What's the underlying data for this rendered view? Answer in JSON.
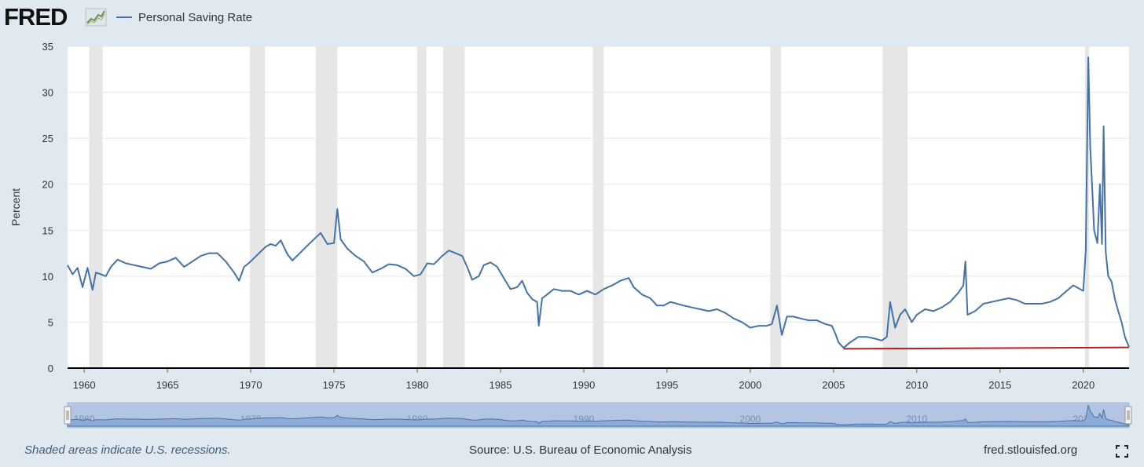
{
  "header": {
    "logo_text": "FRED",
    "logo_icon": "chart-line-icon",
    "legend_label": "Personal Saving Rate",
    "legend_color": "#4572a7"
  },
  "footer": {
    "recession_note": "Shaded areas indicate U.S. recessions.",
    "source": "Source: U.S. Bureau of Economic Analysis",
    "site": "fred.stlouisfed.org",
    "fullscreen_icon": "fullscreen-icon"
  },
  "colors": {
    "series": "#4572a7",
    "reference_line": "#b22222",
    "recession_band": "#e6e6e6",
    "background": "#e1e9f0",
    "navigator_fill": "#9fb5d9"
  },
  "chart_data": {
    "type": "line",
    "title": "",
    "ylabel": "Percent",
    "xlabel": "",
    "ylim": [
      0,
      35
    ],
    "yticks": [
      0,
      5,
      10,
      15,
      20,
      25,
      30,
      35
    ],
    "xlim": [
      1959.0,
      2022.75
    ],
    "xticks": [
      1960,
      1965,
      1970,
      1975,
      1980,
      1985,
      1990,
      1995,
      2000,
      2005,
      2010,
      2015,
      2020
    ],
    "navigator_labels": [
      1960,
      1970,
      1980,
      1990,
      2000,
      2010,
      2020
    ],
    "grid": true,
    "legend_position": "top-left",
    "recessions": [
      [
        1960.3,
        1961.1
      ],
      [
        1969.95,
        1970.85
      ],
      [
        1973.9,
        1975.2
      ],
      [
        1980.0,
        1980.55
      ],
      [
        1981.55,
        1982.85
      ],
      [
        1990.55,
        1991.2
      ],
      [
        2001.2,
        2001.85
      ],
      [
        2007.95,
        2009.45
      ],
      [
        2020.1,
        2020.35
      ]
    ],
    "reference_line": {
      "x_start": 2005.6,
      "x_end": 2022.75,
      "y_start": 2.1,
      "y_end": 2.25
    },
    "series": [
      {
        "name": "Personal Saving Rate",
        "points": [
          [
            1959.0,
            11.2
          ],
          [
            1959.3,
            10.2
          ],
          [
            1959.6,
            10.9
          ],
          [
            1959.9,
            8.8
          ],
          [
            1960.2,
            10.9
          ],
          [
            1960.5,
            8.5
          ],
          [
            1960.7,
            10.4
          ],
          [
            1961.0,
            10.2
          ],
          [
            1961.3,
            10.0
          ],
          [
            1961.6,
            11.0
          ],
          [
            1962.0,
            11.8
          ],
          [
            1962.5,
            11.4
          ],
          [
            1963.0,
            11.2
          ],
          [
            1963.5,
            11.0
          ],
          [
            1964.0,
            10.8
          ],
          [
            1964.5,
            11.4
          ],
          [
            1965.0,
            11.6
          ],
          [
            1965.5,
            12.0
          ],
          [
            1966.0,
            11.0
          ],
          [
            1966.5,
            11.6
          ],
          [
            1967.0,
            12.2
          ],
          [
            1967.5,
            12.5
          ],
          [
            1968.0,
            12.5
          ],
          [
            1968.5,
            11.6
          ],
          [
            1969.0,
            10.4
          ],
          [
            1969.3,
            9.5
          ],
          [
            1969.6,
            11.0
          ],
          [
            1970.0,
            11.6
          ],
          [
            1970.5,
            12.5
          ],
          [
            1970.9,
            13.2
          ],
          [
            1971.2,
            13.5
          ],
          [
            1971.5,
            13.3
          ],
          [
            1971.8,
            13.9
          ],
          [
            1972.2,
            12.4
          ],
          [
            1972.5,
            11.7
          ],
          [
            1973.0,
            12.6
          ],
          [
            1973.5,
            13.5
          ],
          [
            1973.9,
            14.2
          ],
          [
            1974.2,
            14.7
          ],
          [
            1974.6,
            13.5
          ],
          [
            1975.0,
            13.6
          ],
          [
            1975.2,
            17.3
          ],
          [
            1975.4,
            14.0
          ],
          [
            1975.8,
            13.0
          ],
          [
            1976.3,
            12.2
          ],
          [
            1976.8,
            11.6
          ],
          [
            1977.3,
            10.4
          ],
          [
            1977.8,
            10.8
          ],
          [
            1978.3,
            11.3
          ],
          [
            1978.8,
            11.2
          ],
          [
            1979.3,
            10.8
          ],
          [
            1979.8,
            10.0
          ],
          [
            1980.2,
            10.2
          ],
          [
            1980.6,
            11.4
          ],
          [
            1981.0,
            11.3
          ],
          [
            1981.5,
            12.2
          ],
          [
            1981.9,
            12.8
          ],
          [
            1982.3,
            12.5
          ],
          [
            1982.7,
            12.2
          ],
          [
            1983.0,
            11.0
          ],
          [
            1983.3,
            9.6
          ],
          [
            1983.7,
            10.0
          ],
          [
            1984.0,
            11.2
          ],
          [
            1984.4,
            11.5
          ],
          [
            1984.8,
            11.0
          ],
          [
            1985.2,
            9.8
          ],
          [
            1985.6,
            8.6
          ],
          [
            1986.0,
            8.8
          ],
          [
            1986.3,
            9.5
          ],
          [
            1986.6,
            8.2
          ],
          [
            1986.9,
            7.5
          ],
          [
            1987.2,
            7.2
          ],
          [
            1987.3,
            4.6
          ],
          [
            1987.5,
            7.6
          ],
          [
            1987.8,
            8.0
          ],
          [
            1988.2,
            8.6
          ],
          [
            1988.7,
            8.4
          ],
          [
            1989.2,
            8.4
          ],
          [
            1989.7,
            8.0
          ],
          [
            1990.2,
            8.4
          ],
          [
            1990.7,
            8.0
          ],
          [
            1991.2,
            8.6
          ],
          [
            1991.7,
            9.0
          ],
          [
            1992.2,
            9.5
          ],
          [
            1992.7,
            9.8
          ],
          [
            1993.0,
            8.8
          ],
          [
            1993.5,
            8.0
          ],
          [
            1994.0,
            7.6
          ],
          [
            1994.4,
            6.8
          ],
          [
            1994.8,
            6.8
          ],
          [
            1995.2,
            7.2
          ],
          [
            1995.6,
            7.0
          ],
          [
            1996.0,
            6.8
          ],
          [
            1996.5,
            6.6
          ],
          [
            1997.0,
            6.4
          ],
          [
            1997.5,
            6.2
          ],
          [
            1998.0,
            6.4
          ],
          [
            1998.5,
            6.0
          ],
          [
            1999.0,
            5.4
          ],
          [
            1999.5,
            5.0
          ],
          [
            2000.0,
            4.4
          ],
          [
            2000.5,
            4.6
          ],
          [
            2001.0,
            4.6
          ],
          [
            2001.3,
            4.8
          ],
          [
            2001.6,
            6.8
          ],
          [
            2001.9,
            3.6
          ],
          [
            2002.2,
            5.6
          ],
          [
            2002.6,
            5.6
          ],
          [
            2003.0,
            5.4
          ],
          [
            2003.5,
            5.2
          ],
          [
            2004.0,
            5.2
          ],
          [
            2004.5,
            4.8
          ],
          [
            2004.9,
            4.6
          ],
          [
            2005.1,
            3.8
          ],
          [
            2005.3,
            2.8
          ],
          [
            2005.6,
            2.2
          ],
          [
            2006.0,
            2.8
          ],
          [
            2006.5,
            3.4
          ],
          [
            2007.0,
            3.4
          ],
          [
            2007.5,
            3.2
          ],
          [
            2007.9,
            3.0
          ],
          [
            2008.2,
            3.4
          ],
          [
            2008.4,
            7.2
          ],
          [
            2008.7,
            4.4
          ],
          [
            2009.0,
            5.8
          ],
          [
            2009.3,
            6.4
          ],
          [
            2009.7,
            5.0
          ],
          [
            2010.0,
            5.8
          ],
          [
            2010.5,
            6.4
          ],
          [
            2011.0,
            6.2
          ],
          [
            2011.5,
            6.6
          ],
          [
            2012.0,
            7.2
          ],
          [
            2012.5,
            8.2
          ],
          [
            2012.8,
            9.0
          ],
          [
            2012.92,
            11.6
          ],
          [
            2013.05,
            5.8
          ],
          [
            2013.5,
            6.2
          ],
          [
            2014.0,
            7.0
          ],
          [
            2014.5,
            7.2
          ],
          [
            2015.0,
            7.4
          ],
          [
            2015.5,
            7.6
          ],
          [
            2016.0,
            7.4
          ],
          [
            2016.5,
            7.0
          ],
          [
            2017.0,
            7.0
          ],
          [
            2017.5,
            7.0
          ],
          [
            2018.0,
            7.2
          ],
          [
            2018.5,
            7.6
          ],
          [
            2019.0,
            8.4
          ],
          [
            2019.4,
            9.0
          ],
          [
            2019.8,
            8.6
          ],
          [
            2020.0,
            8.4
          ],
          [
            2020.15,
            12.8
          ],
          [
            2020.3,
            33.8
          ],
          [
            2020.42,
            24.0
          ],
          [
            2020.55,
            19.0
          ],
          [
            2020.65,
            15.0
          ],
          [
            2020.85,
            13.6
          ],
          [
            2021.0,
            20.0
          ],
          [
            2021.12,
            13.5
          ],
          [
            2021.22,
            26.3
          ],
          [
            2021.35,
            12.6
          ],
          [
            2021.5,
            10.0
          ],
          [
            2021.7,
            9.4
          ],
          [
            2021.9,
            7.5
          ],
          [
            2022.1,
            6.2
          ],
          [
            2022.3,
            5.0
          ],
          [
            2022.5,
            3.4
          ],
          [
            2022.75,
            2.3
          ]
        ]
      }
    ]
  }
}
